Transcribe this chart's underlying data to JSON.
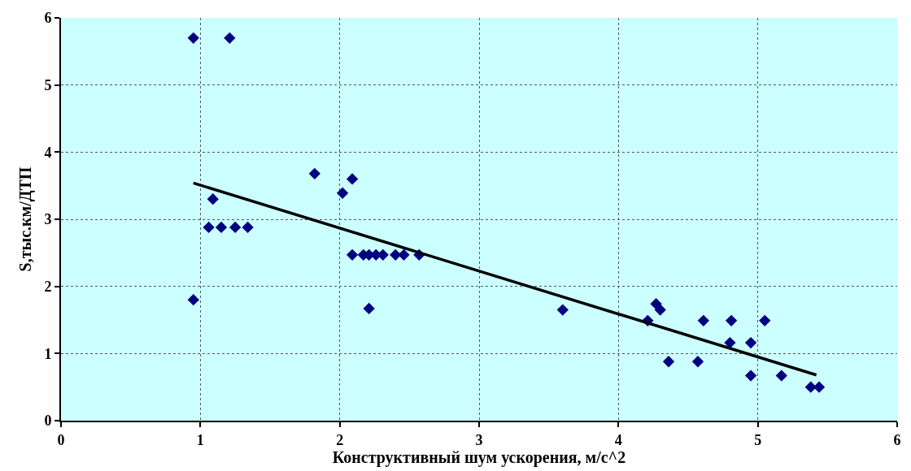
{
  "chart_data": {
    "type": "scatter",
    "xlabel": "Конструктивный шум ускорения, м/с^2",
    "ylabel": "S,тыс.км/ДТП",
    "xlim": [
      0,
      6
    ],
    "xticks": [
      0,
      1,
      2,
      3,
      4,
      5,
      6
    ],
    "ylim": [
      0,
      6
    ],
    "yticks": [
      0,
      1,
      2,
      3,
      4,
      5,
      6
    ],
    "grid": true,
    "legend": false,
    "marker": "diamond",
    "series": [
      {
        "color": "#000080",
        "x": [
          0.95,
          1.21,
          0.95,
          1.09,
          1.06,
          1.15,
          1.25,
          1.34,
          1.82,
          2.02,
          2.09,
          2.09,
          2.17,
          2.21,
          2.26,
          2.31,
          2.4,
          2.46,
          2.57,
          2.21,
          3.6,
          4.21,
          4.27,
          4.3,
          4.36,
          4.57,
          4.61,
          4.8,
          4.81,
          4.95,
          4.95,
          5.05,
          5.17,
          5.38,
          5.44
        ],
        "values": [
          5.7,
          5.7,
          1.8,
          3.3,
          2.88,
          2.88,
          2.88,
          2.88,
          3.68,
          3.39,
          3.6,
          2.47,
          2.47,
          2.47,
          2.47,
          2.47,
          2.47,
          2.47,
          2.47,
          1.67,
          1.65,
          1.49,
          1.74,
          1.65,
          0.88,
          0.88,
          1.49,
          1.16,
          1.49,
          1.16,
          0.67,
          1.49,
          0.67,
          0.5,
          0.5
        ]
      },
      {
        "type": "line",
        "color": "#000000",
        "marker": "none",
        "x": [
          0.95,
          5.42
        ],
        "values": [
          3.54,
          0.68
        ]
      }
    ]
  }
}
